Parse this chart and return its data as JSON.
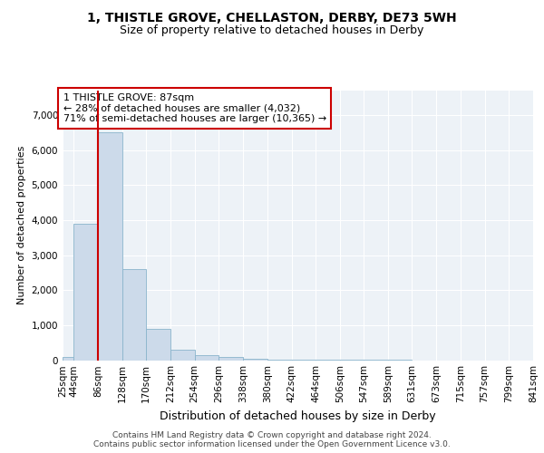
{
  "title_line1": "1, THISTLE GROVE, CHELLASTON, DERBY, DE73 5WH",
  "title_line2": "Size of property relative to detached houses in Derby",
  "xlabel": "Distribution of detached houses by size in Derby",
  "ylabel": "Number of detached properties",
  "bin_edges": [
    25,
    44,
    86,
    128,
    170,
    212,
    254,
    296,
    338,
    380,
    422,
    464,
    506,
    547,
    589,
    631,
    673,
    715,
    757,
    799,
    841
  ],
  "bin_labels": [
    "25sqm",
    "44sqm",
    "86sqm",
    "128sqm",
    "170sqm",
    "212sqm",
    "254sqm",
    "296sqm",
    "338sqm",
    "380sqm",
    "422sqm",
    "464sqm",
    "506sqm",
    "547sqm",
    "589sqm",
    "631sqm",
    "673sqm",
    "715sqm",
    "757sqm",
    "799sqm",
    "841sqm"
  ],
  "bar_heights": [
    100,
    3900,
    6500,
    2600,
    900,
    300,
    150,
    80,
    40,
    20,
    8,
    4,
    2,
    1,
    1,
    0,
    0,
    0,
    0,
    0
  ],
  "bar_color": "#ccdaea",
  "bar_edge_color": "#8ab4cc",
  "vline_x": 86,
  "vline_color": "#cc0000",
  "annotation_text": "1 THISTLE GROVE: 87sqm\n← 28% of detached houses are smaller (4,032)\n71% of semi-detached houses are larger (10,365) →",
  "annotation_box_color": "#cc0000",
  "ylim": [
    0,
    7700
  ],
  "yticks": [
    0,
    1000,
    2000,
    3000,
    4000,
    5000,
    6000,
    7000
  ],
  "background_color": "#edf2f7",
  "grid_color": "#ffffff",
  "footer_text": "Contains HM Land Registry data © Crown copyright and database right 2024.\nContains public sector information licensed under the Open Government Licence v3.0.",
  "fig_bg_color": "#ffffff",
  "title1_fontsize": 10,
  "title2_fontsize": 9,
  "ylabel_fontsize": 8,
  "xlabel_fontsize": 9,
  "tick_fontsize": 7.5,
  "footer_fontsize": 6.5
}
